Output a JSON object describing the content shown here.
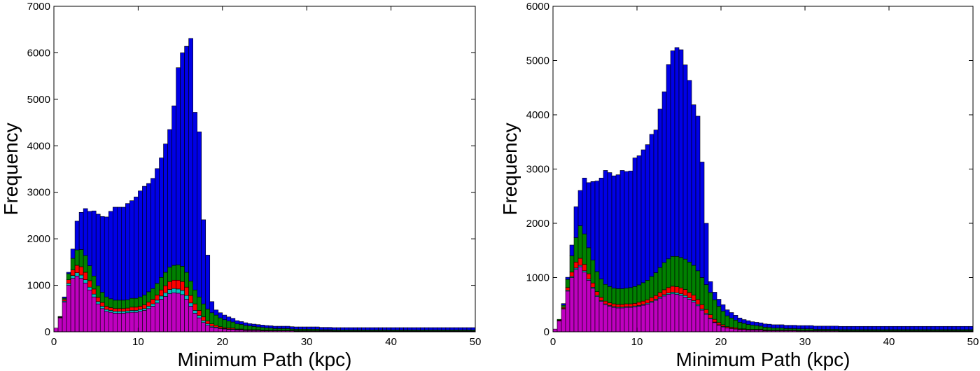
{
  "chart_data": [
    {
      "type": "bar",
      "stacked": true,
      "xlabel": "Minimum Path (kpc)",
      "ylabel": "Frequency",
      "xlim": [
        0,
        50
      ],
      "ylim": [
        0,
        7000
      ],
      "xticks": [
        0,
        10,
        20,
        30,
        40,
        50
      ],
      "yticks": [
        0,
        1000,
        2000,
        3000,
        4000,
        5000,
        6000,
        7000
      ],
      "bin_width": 0.5,
      "grid": false,
      "legend": "none",
      "bins_start": 0,
      "series": [
        {
          "color": "#bf00bf",
          "values": [
            80,
            300,
            640,
            1000,
            1150,
            1200,
            1150,
            1050,
            900,
            750,
            600,
            500,
            440,
            420,
            400,
            400,
            400,
            410,
            420,
            420,
            440,
            460,
            500,
            550,
            620,
            700,
            760,
            820,
            840,
            830,
            800,
            700,
            550,
            400,
            300,
            200,
            140,
            100,
            80,
            70,
            60,
            50,
            50,
            40,
            40,
            30,
            30,
            30,
            30,
            20,
            20,
            20,
            20,
            20,
            20,
            20,
            20,
            15,
            15,
            15,
            15,
            15,
            15,
            15,
            15,
            15,
            10,
            10,
            10,
            10,
            10,
            10,
            10,
            10,
            10,
            10,
            10,
            10,
            10,
            10,
            10,
            10,
            10,
            10,
            10,
            10,
            10,
            10,
            10,
            10,
            10,
            10,
            10,
            10,
            10,
            10,
            10,
            10,
            10,
            10
          ]
        },
        {
          "color": "#00bfbf",
          "values": [
            0,
            10,
            20,
            40,
            60,
            70,
            70,
            70,
            60,
            60,
            50,
            50,
            40,
            40,
            40,
            40,
            40,
            40,
            40,
            40,
            40,
            40,
            50,
            50,
            60,
            70,
            80,
            90,
            90,
            90,
            90,
            80,
            70,
            60,
            50,
            40,
            30,
            20,
            20,
            10,
            10,
            10,
            10,
            10,
            10,
            5,
            5,
            5,
            5,
            5,
            5,
            5,
            5,
            5,
            5,
            5,
            5,
            5,
            5,
            5,
            5,
            5,
            5,
            5,
            5,
            5,
            5,
            5,
            5,
            5,
            5,
            5,
            5,
            5,
            5,
            5,
            5,
            5,
            5,
            5,
            5,
            5,
            5,
            5,
            5,
            5,
            5,
            5,
            5,
            5,
            5,
            5,
            5,
            5,
            5,
            5,
            5,
            5,
            5,
            5
          ]
        },
        {
          "color": "#ff0000",
          "values": [
            0,
            10,
            30,
            80,
            120,
            160,
            180,
            160,
            140,
            110,
            90,
            80,
            70,
            60,
            60,
            60,
            60,
            60,
            70,
            70,
            70,
            80,
            90,
            100,
            110,
            130,
            150,
            170,
            180,
            190,
            190,
            180,
            160,
            140,
            110,
            80,
            60,
            50,
            40,
            30,
            20,
            20,
            20,
            10,
            10,
            10,
            10,
            10,
            10,
            10,
            10,
            5,
            5,
            5,
            5,
            5,
            5,
            5,
            5,
            5,
            5,
            5,
            5,
            5,
            5,
            5,
            5,
            5,
            5,
            5,
            5,
            5,
            5,
            5,
            5,
            5,
            5,
            5,
            5,
            5,
            5,
            5,
            5,
            5,
            5,
            5,
            5,
            5,
            5,
            5,
            5,
            5,
            5,
            5,
            5,
            5,
            5,
            5,
            5,
            5
          ]
        },
        {
          "color": "#008000",
          "values": [
            0,
            10,
            30,
            130,
            250,
            330,
            370,
            360,
            320,
            280,
            250,
            220,
            200,
            190,
            180,
            180,
            180,
            180,
            190,
            190,
            200,
            210,
            220,
            230,
            250,
            270,
            290,
            310,
            320,
            330,
            330,
            320,
            310,
            300,
            290,
            280,
            260,
            240,
            220,
            190,
            170,
            150,
            130,
            110,
            100,
            90,
            80,
            70,
            60,
            60,
            50,
            50,
            40,
            40,
            40,
            40,
            30,
            30,
            30,
            30,
            30,
            30,
            30,
            20,
            20,
            20,
            20,
            20,
            20,
            20,
            20,
            20,
            20,
            20,
            20,
            20,
            20,
            20,
            20,
            20,
            20,
            20,
            20,
            20,
            20,
            20,
            20,
            20,
            20,
            20,
            20,
            20,
            20,
            20,
            20,
            20,
            20,
            20,
            20,
            20
          ]
        },
        {
          "color": "#0000e6",
          "values": [
            0,
            0,
            30,
            30,
            200,
            620,
            800,
            1010,
            1170,
            1400,
            1540,
            1630,
            1720,
            1880,
            2000,
            2000,
            2000,
            2070,
            2100,
            2180,
            2280,
            2340,
            2330,
            2370,
            2470,
            2570,
            2760,
            2960,
            3430,
            4240,
            4590,
            4860,
            5220,
            3820,
            3550,
            1810,
            1160,
            240,
            110,
            110,
            100,
            90,
            80,
            70,
            60,
            60,
            50,
            50,
            50,
            50,
            50,
            50,
            50,
            50,
            50,
            50,
            50,
            50,
            50,
            50,
            50,
            50,
            50,
            50,
            50,
            50,
            50,
            50,
            50,
            50,
            50,
            50,
            50,
            50,
            50,
            50,
            50,
            50,
            50,
            50,
            50,
            50,
            50,
            50,
            50,
            50,
            50,
            50,
            50,
            50,
            50,
            50,
            50,
            50,
            50,
            50,
            50,
            50,
            50,
            50
          ]
        }
      ]
    },
    {
      "type": "bar",
      "stacked": true,
      "xlabel": "Minimum Path (kpc)",
      "ylabel": "Frequency",
      "xlim": [
        0,
        50
      ],
      "ylim": [
        0,
        6000
      ],
      "xticks": [
        0,
        10,
        20,
        30,
        40,
        50
      ],
      "yticks": [
        0,
        1000,
        2000,
        3000,
        4000,
        5000,
        6000
      ],
      "bin_width": 0.5,
      "grid": false,
      "legend": "none",
      "bins_start": 0,
      "series": [
        {
          "color": "#bf00bf",
          "values": [
            50,
            200,
            420,
            750,
            1000,
            1150,
            1200,
            1100,
            950,
            800,
            650,
            560,
            500,
            470,
            450,
            440,
            440,
            450,
            450,
            460,
            470,
            490,
            510,
            540,
            580,
            620,
            660,
            690,
            700,
            690,
            670,
            640,
            600,
            550,
            480,
            400,
            320,
            240,
            170,
            120,
            90,
            70,
            60,
            50,
            40,
            40,
            30,
            30,
            30,
            30,
            20,
            20,
            20,
            20,
            20,
            20,
            20,
            20,
            15,
            15,
            15,
            15,
            15,
            15,
            15,
            15,
            15,
            15,
            10,
            10,
            10,
            10,
            10,
            10,
            10,
            10,
            10,
            10,
            10,
            10,
            10,
            10,
            10,
            10,
            10,
            10,
            10,
            10,
            10,
            10,
            10,
            10,
            10,
            10,
            10,
            10,
            10,
            10,
            10,
            10
          ]
        },
        {
          "color": "#00bfbf",
          "values": [
            0,
            5,
            10,
            15,
            20,
            25,
            25,
            25,
            20,
            20,
            20,
            15,
            15,
            15,
            15,
            15,
            15,
            15,
            15,
            15,
            15,
            15,
            20,
            20,
            20,
            25,
            25,
            25,
            30,
            30,
            30,
            30,
            25,
            25,
            25,
            20,
            20,
            15,
            10,
            10,
            10,
            5,
            5,
            5,
            5,
            5,
            5,
            5,
            5,
            5,
            5,
            5,
            5,
            5,
            5,
            5,
            5,
            5,
            5,
            5,
            5,
            5,
            5,
            5,
            5,
            5,
            5,
            5,
            5,
            5,
            5,
            5,
            5,
            5,
            5,
            5,
            5,
            5,
            5,
            5,
            5,
            5,
            5,
            5,
            5,
            5,
            5,
            5,
            5,
            5,
            5,
            5,
            5,
            5,
            5,
            5,
            5,
            5,
            5,
            5
          ]
        },
        {
          "color": "#ff0000",
          "values": [
            0,
            10,
            20,
            50,
            80,
            110,
            130,
            120,
            100,
            80,
            70,
            60,
            50,
            50,
            50,
            50,
            50,
            50,
            50,
            50,
            60,
            60,
            60,
            70,
            70,
            80,
            90,
            100,
            110,
            110,
            110,
            110,
            100,
            100,
            90,
            80,
            70,
            60,
            50,
            40,
            30,
            20,
            20,
            20,
            10,
            10,
            10,
            10,
            10,
            10,
            10,
            5,
            5,
            5,
            5,
            5,
            5,
            5,
            5,
            5,
            5,
            5,
            5,
            5,
            5,
            5,
            5,
            5,
            5,
            5,
            5,
            5,
            5,
            5,
            5,
            5,
            5,
            5,
            5,
            5,
            5,
            5,
            5,
            5,
            5,
            5,
            5,
            5,
            5,
            5,
            5,
            5,
            5,
            5,
            5,
            5,
            5,
            5,
            5,
            5
          ]
        },
        {
          "color": "#008000",
          "values": [
            0,
            15,
            40,
            150,
            300,
            450,
            600,
            560,
            480,
            420,
            370,
            340,
            310,
            300,
            290,
            290,
            290,
            290,
            300,
            310,
            320,
            340,
            360,
            390,
            420,
            460,
            500,
            530,
            550,
            560,
            560,
            560,
            560,
            550,
            530,
            500,
            460,
            410,
            360,
            300,
            250,
            200,
            170,
            140,
            120,
            100,
            90,
            80,
            70,
            60,
            50,
            50,
            40,
            40,
            40,
            30,
            30,
            30,
            30,
            30,
            30,
            30,
            20,
            20,
            20,
            20,
            20,
            20,
            20,
            20,
            20,
            20,
            20,
            20,
            20,
            20,
            20,
            20,
            20,
            20,
            20,
            20,
            20,
            20,
            20,
            20,
            20,
            20,
            20,
            20,
            20,
            20,
            20,
            20,
            20,
            20,
            20,
            20,
            20,
            20
          ]
        },
        {
          "color": "#0000e6",
          "values": [
            0,
            0,
            30,
            40,
            200,
            570,
            650,
            1030,
            1200,
            1450,
            1670,
            1860,
            2100,
            2100,
            2070,
            2100,
            2180,
            2150,
            2150,
            2370,
            2380,
            2450,
            2500,
            2620,
            2630,
            2920,
            3150,
            3580,
            3790,
            3850,
            3830,
            3580,
            3350,
            2960,
            2850,
            2130,
            1130,
            200,
            140,
            130,
            120,
            110,
            100,
            90,
            80,
            70,
            70,
            60,
            60,
            60,
            60,
            60,
            60,
            60,
            60,
            60,
            60,
            60,
            60,
            60,
            60,
            60,
            60,
            60,
            60,
            60,
            60,
            60,
            60,
            60,
            60,
            60,
            60,
            60,
            60,
            60,
            60,
            60,
            60,
            60,
            60,
            60,
            60,
            60,
            60,
            60,
            60,
            60,
            60,
            60,
            60,
            60,
            60,
            60,
            60,
            60,
            60,
            60,
            60,
            60
          ]
        }
      ]
    }
  ]
}
